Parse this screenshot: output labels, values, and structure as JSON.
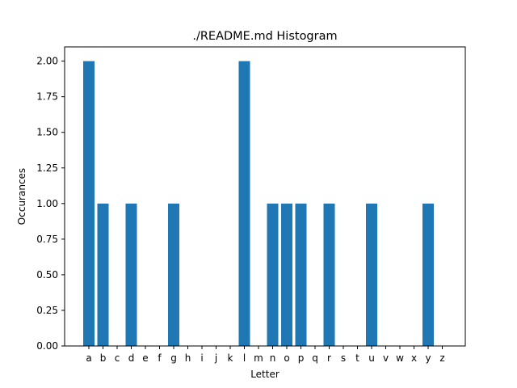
{
  "chart_data": {
    "type": "bar",
    "title": "./README.md Histogram",
    "xlabel": "Letter",
    "ylabel": "Occurances",
    "categories": [
      "a",
      "b",
      "c",
      "d",
      "e",
      "f",
      "g",
      "h",
      "i",
      "j",
      "k",
      "l",
      "m",
      "n",
      "o",
      "p",
      "q",
      "r",
      "s",
      "t",
      "u",
      "v",
      "w",
      "x",
      "y",
      "z"
    ],
    "values": [
      2,
      1,
      0,
      1,
      0,
      0,
      1,
      0,
      0,
      0,
      0,
      2,
      0,
      1,
      1,
      1,
      0,
      1,
      0,
      0,
      1,
      0,
      0,
      0,
      1,
      0
    ],
    "ylim": [
      0,
      2.1
    ],
    "yticks": [
      "0.00",
      "0.25",
      "0.50",
      "0.75",
      "1.00",
      "1.25",
      "1.50",
      "1.75",
      "2.00"
    ],
    "grid": false,
    "bar_color": "#1f77b4"
  }
}
